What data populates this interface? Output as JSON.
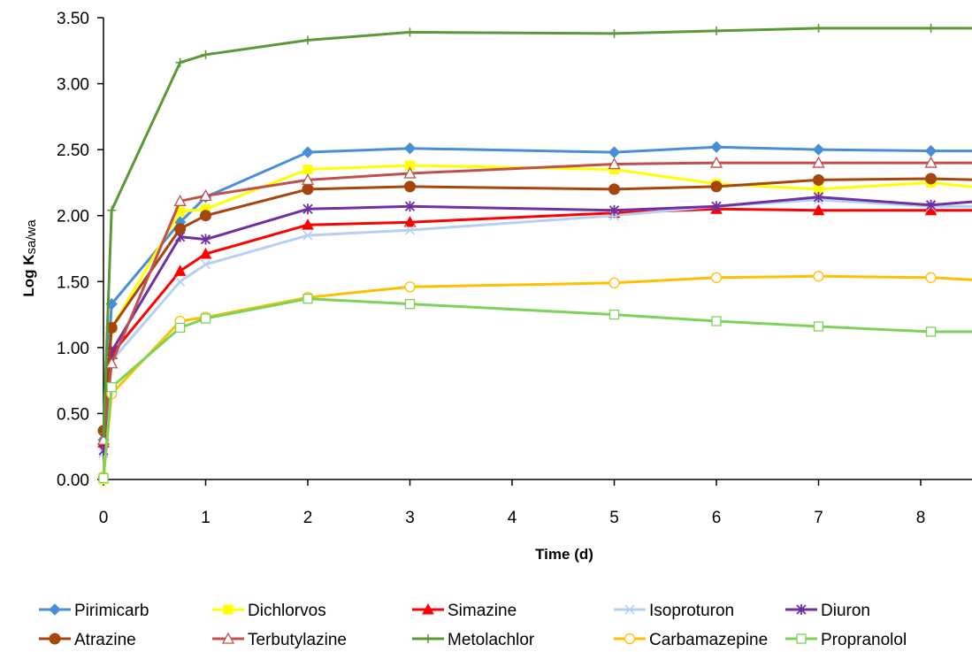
{
  "chart_data": {
    "type": "line",
    "title": "",
    "xlabel": "Time (d)",
    "ylabel_main": "Log K",
    "ylabel_sub": "sa/wa",
    "xlim": [
      0,
      8.6
    ],
    "ylim": [
      0,
      3.5
    ],
    "x_ticks": [
      0,
      1,
      2,
      3,
      4,
      5,
      6,
      7,
      8
    ],
    "y_ticks": [
      "0.00",
      "0.50",
      "1.00",
      "1.50",
      "2.00",
      "2.50",
      "3.00",
      "3.50"
    ],
    "grid": false,
    "legend_position": "bottom",
    "x": [
      0,
      0.08,
      0.75,
      1,
      2,
      3,
      5,
      6,
      7,
      8.1,
      8.6
    ],
    "series": [
      {
        "name": "Pirimicarb",
        "color": "#4a8fd6",
        "marker": "diamond",
        "values": [
          0.3,
          1.33,
          1.95,
          2.14,
          2.48,
          2.51,
          2.48,
          2.52,
          2.5,
          2.49,
          2.49
        ]
      },
      {
        "name": "Dichlorvos",
        "color": "#ffff00",
        "marker": "square",
        "values": [
          0.0,
          1.15,
          2.03,
          2.05,
          2.35,
          2.38,
          2.35,
          2.24,
          2.2,
          2.25,
          2.21
        ]
      },
      {
        "name": "Simazine",
        "color": "#ff0000",
        "marker": "triangle-filled",
        "values": [
          0.28,
          0.95,
          1.58,
          1.71,
          1.93,
          1.95,
          2.02,
          2.05,
          2.04,
          2.04,
          2.04
        ]
      },
      {
        "name": "Isoproturon",
        "color": "#b5d0f0",
        "marker": "x",
        "values": [
          0.2,
          0.9,
          1.5,
          1.63,
          1.85,
          1.89,
          2.0,
          2.07,
          2.12,
          2.07,
          2.07
        ]
      },
      {
        "name": "Diuron",
        "color": "#7030a0",
        "marker": "star",
        "values": [
          0.22,
          0.97,
          1.84,
          1.82,
          2.05,
          2.07,
          2.04,
          2.07,
          2.14,
          2.08,
          2.11
        ]
      },
      {
        "name": "Atrazine",
        "color": "#a5460f",
        "marker": "circle-filled",
        "values": [
          0.37,
          1.15,
          1.9,
          2.0,
          2.2,
          2.22,
          2.2,
          2.22,
          2.27,
          2.28,
          2.27
        ]
      },
      {
        "name": "Terbutylazine",
        "color": "#c0504d",
        "marker": "triangle-open",
        "values": [
          0.3,
          0.88,
          2.11,
          2.15,
          2.27,
          2.32,
          2.39,
          2.4,
          2.4,
          2.4,
          2.4
        ]
      },
      {
        "name": "Metolachlor",
        "color": "#5a9a36",
        "marker": "plus",
        "values": [
          0.35,
          2.04,
          3.16,
          3.22,
          3.33,
          3.39,
          3.38,
          3.4,
          3.42,
          3.42,
          3.42
        ]
      },
      {
        "name": "Carbamazepine",
        "color": "#ffc000",
        "marker": "circle-open",
        "values": [
          0.02,
          0.65,
          1.2,
          1.23,
          1.38,
          1.46,
          1.49,
          1.53,
          1.54,
          1.53,
          1.51
        ]
      },
      {
        "name": "Propranolol",
        "color": "#7dd35a",
        "marker": "square-open",
        "values": [
          0.01,
          0.7,
          1.15,
          1.22,
          1.37,
          1.33,
          1.25,
          1.2,
          1.16,
          1.12,
          1.12
        ]
      }
    ]
  }
}
